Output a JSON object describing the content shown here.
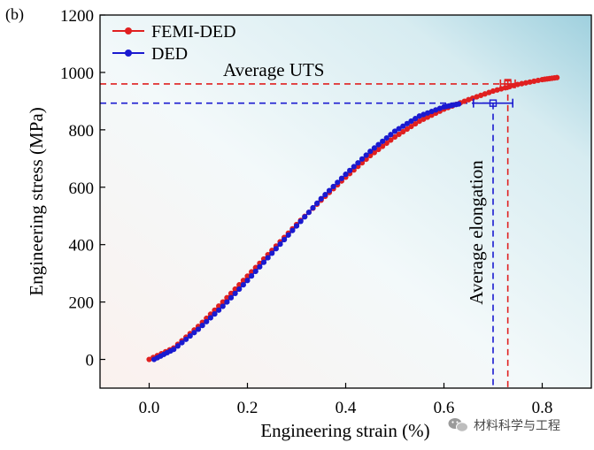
{
  "panel_label": "(b)",
  "watermark": {
    "text": "材料科学与工程",
    "icon": "wechat-icon"
  },
  "chart_data": {
    "type": "line",
    "xlabel": "Engineering strain (%)",
    "ylabel": "Engineering stress (MPa)",
    "xlim": [
      -0.1,
      0.9
    ],
    "ylim": [
      -100,
      1200
    ],
    "x_ticks": [
      0.0,
      0.2,
      0.4,
      0.6,
      0.8
    ],
    "x_tick_labels": [
      "0.0",
      "0.2",
      "0.4",
      "0.6",
      "0.8"
    ],
    "y_ticks": [
      0,
      200,
      400,
      600,
      800,
      1000,
      1200
    ],
    "y_tick_labels": [
      "0",
      "200",
      "400",
      "600",
      "800",
      "1000",
      "1200"
    ],
    "legend_position": "top-left",
    "grid": false,
    "series": [
      {
        "name": "FEMI-DED",
        "color": "#e02020",
        "marker": "circle",
        "x": [
          0.0,
          0.05,
          0.1,
          0.15,
          0.2,
          0.25,
          0.3,
          0.35,
          0.4,
          0.45,
          0.5,
          0.55,
          0.6,
          0.65,
          0.7,
          0.75,
          0.8,
          0.83
        ],
        "y": [
          0,
          40,
          115,
          200,
          290,
          380,
          470,
          555,
          635,
          710,
          775,
          830,
          872,
          905,
          935,
          958,
          975,
          982
        ]
      },
      {
        "name": "DED",
        "color": "#1a1ad0",
        "marker": "circle",
        "x": [
          0.01,
          0.05,
          0.1,
          0.15,
          0.2,
          0.25,
          0.3,
          0.35,
          0.4,
          0.45,
          0.5,
          0.55,
          0.6,
          0.63
        ],
        "y": [
          0,
          35,
          105,
          185,
          275,
          370,
          465,
          560,
          645,
          725,
          795,
          848,
          880,
          890
        ]
      }
    ],
    "annotations": [
      {
        "text": "Average UTS",
        "type": "hline",
        "color": "#e02020",
        "y": 960,
        "x_end": 0.73
      },
      {
        "text": "",
        "type": "hline",
        "color": "#1a1ad0",
        "y": 893,
        "x_end": 0.7
      },
      {
        "text": "Average elongation",
        "type": "vline",
        "color": "#1a1ad0",
        "x": 0.7,
        "y_start": 893
      },
      {
        "text": "",
        "type": "vline",
        "color": "#e02020",
        "x": 0.73,
        "y_start": 960
      }
    ],
    "error_bars": [
      {
        "series": "FEMI-DED",
        "x": 0.73,
        "y": 960,
        "xerr": 0.015,
        "yerr": 15
      },
      {
        "series": "DED",
        "x": 0.7,
        "y": 893,
        "xerr": 0.04,
        "yerr": 0
      }
    ]
  }
}
